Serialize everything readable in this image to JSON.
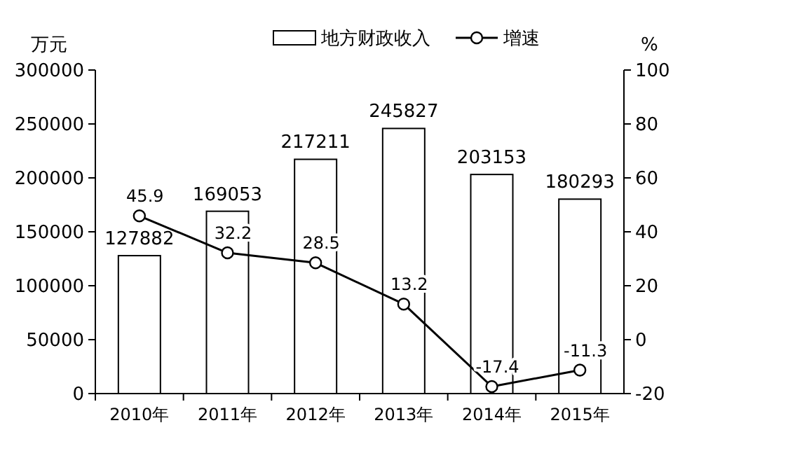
{
  "chart_data": {
    "type": "bar",
    "ylabel": "万元",
    "y2label": "%",
    "categories": [
      "2010年",
      "2011年",
      "2012年",
      "2013年",
      "2014年",
      "2015年"
    ],
    "series": [
      {
        "name": "地方财政收入",
        "color": "#ffffff",
        "values": [
          127882,
          169053,
          217211,
          245827,
          203153,
          180293
        ]
      },
      {
        "name": "增速",
        "type": "line",
        "axis": "y2",
        "color": "#000000",
        "marker": "circle",
        "values": [
          45.9,
          32.2,
          28.5,
          13.2,
          -17.4,
          -11.3
        ]
      }
    ],
    "ylim": [
      0,
      300000
    ],
    "yticks": [
      0,
      50000,
      100000,
      150000,
      200000,
      250000,
      300000
    ],
    "y2lim": [
      -20,
      100
    ],
    "y2ticks": [
      -20,
      0,
      20,
      40,
      60,
      80,
      100
    ],
    "data_labels": true,
    "legend": "top",
    "grid": false
  }
}
